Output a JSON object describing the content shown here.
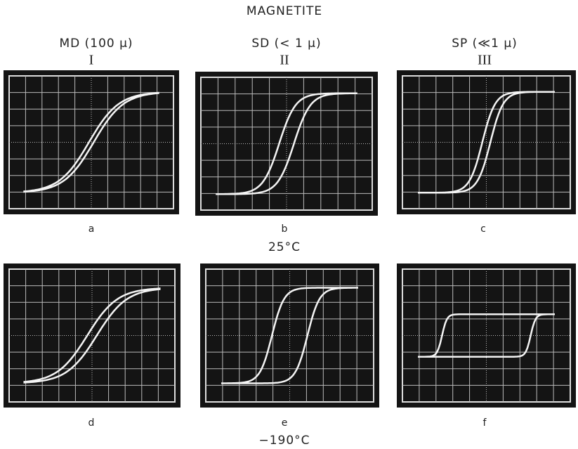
{
  "title": "MAGNETITE",
  "columns": [
    {
      "label": "MD (100 μ)",
      "numeral": "I"
    },
    {
      "label": "SD (< 1 μ)",
      "numeral": "II"
    },
    {
      "label": "SP (≪1 μ)",
      "numeral": "III"
    }
  ],
  "panels": [
    "a",
    "b",
    "c",
    "d",
    "e",
    "f"
  ],
  "temperatures": [
    "25°C",
    "−190°C"
  ]
}
